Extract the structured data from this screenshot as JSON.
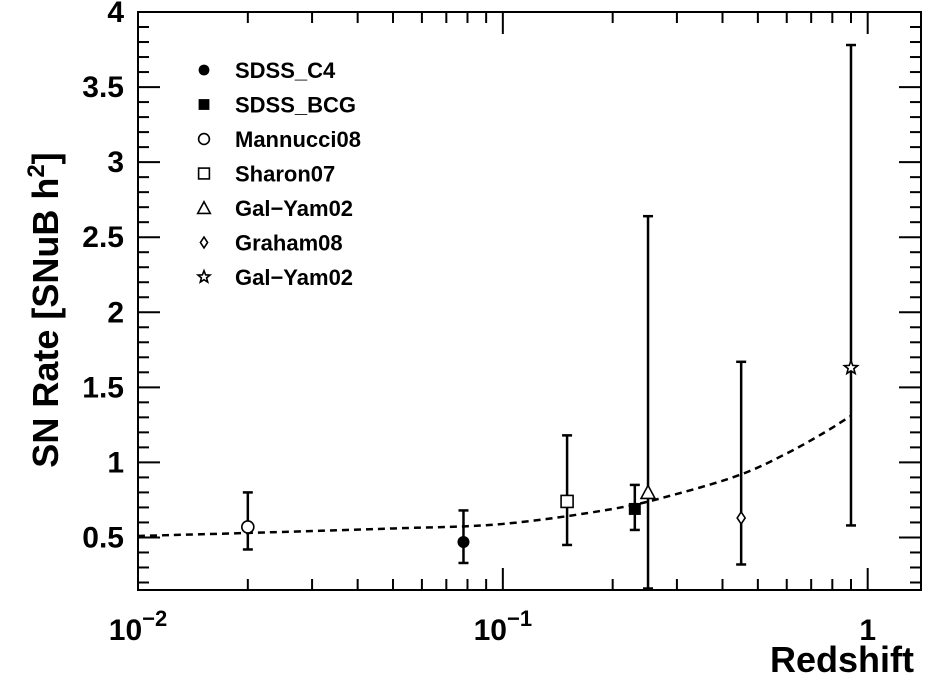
{
  "chart_data": {
    "type": "scatter",
    "title": "",
    "xlabel": "Redshift",
    "ylabel_main": "SN Rate [SNuB h",
    "ylabel_sup": "2",
    "ylabel_close": "]",
    "xscale": "log",
    "xlim": [
      0.01,
      1.4
    ],
    "ylim": [
      0.15,
      4.0
    ],
    "x_ticks": [
      {
        "value": 0.01,
        "base": "10",
        "exp": "−2"
      },
      {
        "value": 0.1,
        "base": "10",
        "exp": "−1"
      },
      {
        "value": 1,
        "base": "1",
        "exp": ""
      }
    ],
    "y_ticks": [
      {
        "value": 0.5,
        "label": "0.5"
      },
      {
        "value": 1,
        "label": "1"
      },
      {
        "value": 1.5,
        "label": "1.5"
      },
      {
        "value": 2,
        "label": "2"
      },
      {
        "value": 2.5,
        "label": "2.5"
      },
      {
        "value": 3,
        "label": "3"
      },
      {
        "value": 3.5,
        "label": "3.5"
      },
      {
        "value": 4,
        "label": "4"
      }
    ],
    "legend_position": "top-left",
    "series": [
      {
        "name": "SDSS_C4",
        "marker": "filled-circle",
        "points": [
          {
            "x": 0.078,
            "y": 0.47,
            "ylo": 0.33,
            "yhi": 0.68
          }
        ]
      },
      {
        "name": "SDSS_BCG",
        "marker": "filled-square",
        "points": [
          {
            "x": 0.23,
            "y": 0.69,
            "ylo": 0.55,
            "yhi": 0.85
          }
        ]
      },
      {
        "name": "Mannucci08",
        "marker": "open-circle",
        "points": [
          {
            "x": 0.02,
            "y": 0.57,
            "ylo": 0.42,
            "yhi": 0.8
          }
        ]
      },
      {
        "name": "Sharon07",
        "marker": "open-square",
        "points": [
          {
            "x": 0.15,
            "y": 0.74,
            "ylo": 0.45,
            "yhi": 1.18
          }
        ]
      },
      {
        "name": "Gal−Yam02",
        "marker": "open-triangle",
        "points": [
          {
            "x": 0.25,
            "y": 0.8,
            "ylo": 0.16,
            "yhi": 2.64
          }
        ]
      },
      {
        "name": "Graham08",
        "marker": "open-diamond",
        "points": [
          {
            "x": 0.45,
            "y": 0.63,
            "ylo": 0.32,
            "yhi": 1.67
          }
        ]
      },
      {
        "name": "Gal−Yam02",
        "marker": "open-star",
        "points": [
          {
            "x": 0.9,
            "y": 1.63,
            "ylo": 0.58,
            "yhi": 3.78
          }
        ]
      }
    ],
    "fit_curve": {
      "style": "dashed",
      "points": [
        {
          "x": 0.01,
          "y": 0.51
        },
        {
          "x": 0.02,
          "y": 0.53
        },
        {
          "x": 0.05,
          "y": 0.56
        },
        {
          "x": 0.1,
          "y": 0.59
        },
        {
          "x": 0.2,
          "y": 0.69
        },
        {
          "x": 0.3,
          "y": 0.79
        },
        {
          "x": 0.45,
          "y": 0.92
        },
        {
          "x": 0.6,
          "y": 1.06
        },
        {
          "x": 0.75,
          "y": 1.19
        },
        {
          "x": 0.9,
          "y": 1.31
        }
      ]
    }
  }
}
